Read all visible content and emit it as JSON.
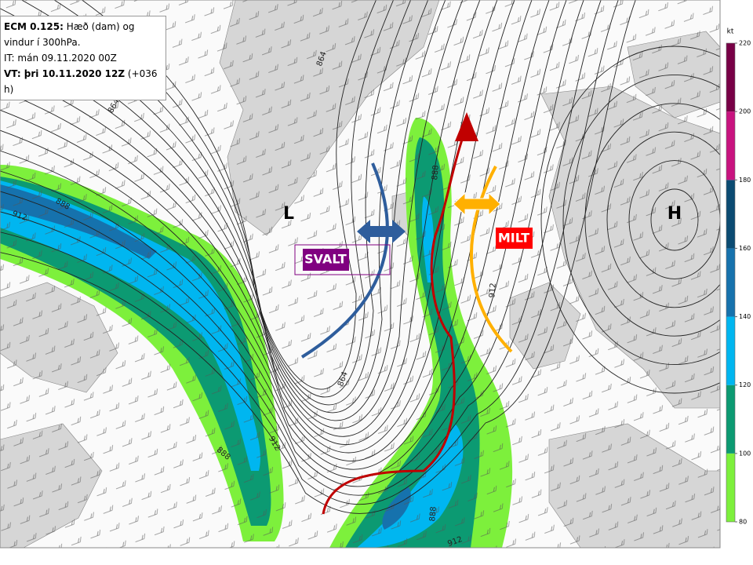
{
  "header": {
    "model": "ECM 0.125:",
    "title": "Hæð (dam) og vindur í 300hPa.",
    "issued": "IT: mán 09.11.2020 00Z",
    "valid": "VT: þri 10.11.2020 12Z",
    "lead": "(+036 h)"
  },
  "annotations": {
    "low": "L",
    "high": "H",
    "cold": "SVALT",
    "warm": "MILT"
  },
  "contour_labels": [
    "864",
    "864",
    "888",
    "888",
    "912",
    "864",
    "912",
    "888",
    "912",
    "888",
    "912"
  ],
  "colorbar": {
    "unit": "kt",
    "lim": [
      80,
      220
    ],
    "ticks": [
      80,
      100,
      120,
      140,
      160,
      180,
      200,
      220
    ],
    "colors": [
      "#7df03c",
      "#0c9a72",
      "#00b6f0",
      "#1672ad",
      "#0b4b72",
      "#c8137f",
      "#780046"
    ]
  }
}
